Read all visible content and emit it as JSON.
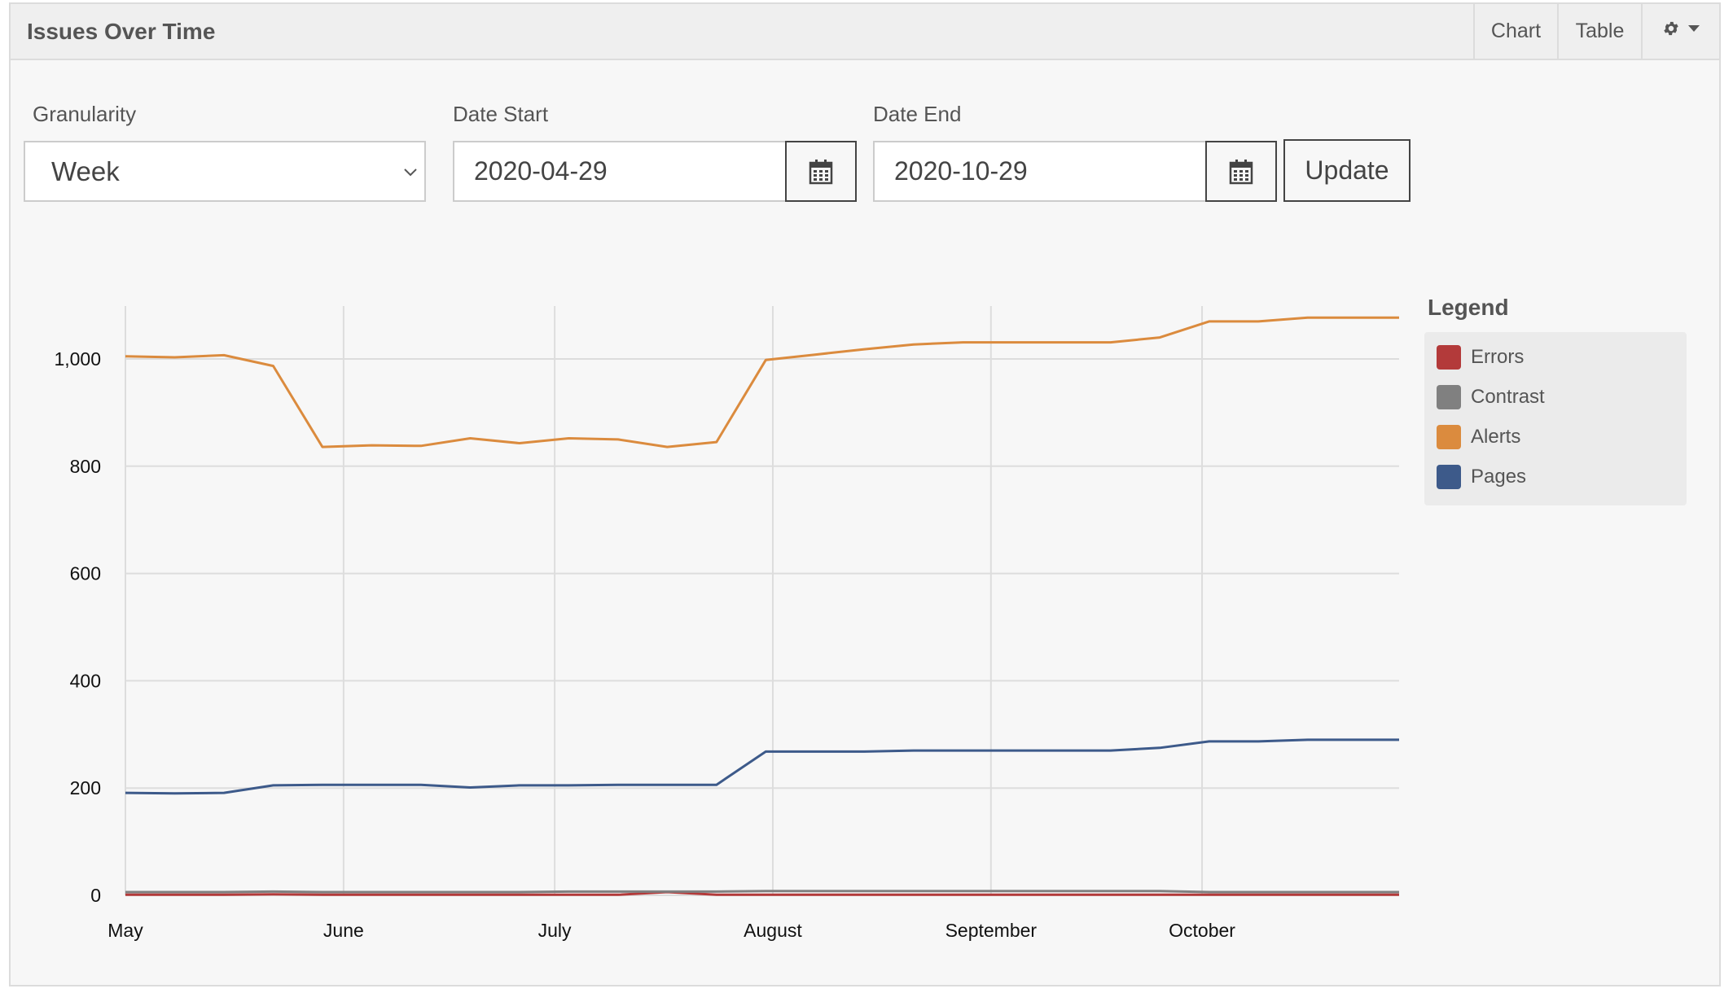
{
  "panel": {
    "title": "Issues Over Time",
    "tabs": [
      "Chart",
      "Table"
    ],
    "settings_icon": "gear-icon"
  },
  "filters": {
    "granularity": {
      "label": "Granularity",
      "value": "Week"
    },
    "date_start": {
      "label": "Date Start",
      "value": "2020-04-29",
      "icon": "calendar-icon"
    },
    "date_end": {
      "label": "Date End",
      "value": "2020-10-29",
      "icon": "calendar-icon"
    },
    "update_label": "Update"
  },
  "legend": {
    "title": "Legend"
  },
  "chart_data": {
    "type": "line",
    "title": "",
    "xlabel": "",
    "ylabel": "",
    "x": [
      "2020-05-01",
      "2020-05-08",
      "2020-05-15",
      "2020-05-22",
      "2020-05-29",
      "2020-06-05",
      "2020-06-12",
      "2020-06-19",
      "2020-06-26",
      "2020-07-03",
      "2020-07-10",
      "2020-07-17",
      "2020-07-24",
      "2020-07-31",
      "2020-08-07",
      "2020-08-14",
      "2020-08-21",
      "2020-08-28",
      "2020-09-04",
      "2020-09-11",
      "2020-09-18",
      "2020-09-25",
      "2020-10-02",
      "2020-10-09",
      "2020-10-16",
      "2020-10-23",
      "2020-10-29"
    ],
    "x_ticks": [
      {
        "date": "2020-05-01",
        "label": "May"
      },
      {
        "date": "2020-06-01",
        "label": "June"
      },
      {
        "date": "2020-07-01",
        "label": "July"
      },
      {
        "date": "2020-08-01",
        "label": "August"
      },
      {
        "date": "2020-09-01",
        "label": "September"
      },
      {
        "date": "2020-10-01",
        "label": "October"
      }
    ],
    "y_ticks": [
      0,
      200,
      400,
      600,
      800,
      1000
    ],
    "y_tick_labels": [
      "0",
      "200",
      "400",
      "600",
      "800",
      "1,000"
    ],
    "ylim": [
      0,
      1100
    ],
    "grid": true,
    "legend_position": "right",
    "series": [
      {
        "name": "Errors",
        "color": "#b33a3a",
        "values": [
          1,
          1,
          1,
          2,
          1,
          1,
          1,
          1,
          1,
          1,
          1,
          6,
          1,
          1,
          1,
          1,
          1,
          1,
          1,
          1,
          1,
          1,
          1,
          1,
          1,
          1,
          1
        ]
      },
      {
        "name": "Contrast",
        "color": "#808080",
        "values": [
          6,
          6,
          6,
          7,
          6,
          6,
          6,
          6,
          6,
          7,
          7,
          7,
          7,
          8,
          8,
          8,
          8,
          8,
          8,
          8,
          8,
          8,
          6,
          6,
          6,
          6,
          6
        ]
      },
      {
        "name": "Alerts",
        "color": "#db8b3e",
        "values": [
          1005,
          1003,
          1007,
          987,
          836,
          839,
          838,
          852,
          843,
          852,
          850,
          836,
          845,
          998,
          1008,
          1018,
          1027,
          1031,
          1031,
          1031,
          1031,
          1040,
          1070,
          1070,
          1077,
          1077,
          1077
        ]
      },
      {
        "name": "Pages",
        "color": "#3d5a8a",
        "values": [
          191,
          190,
          191,
          205,
          206,
          206,
          206,
          201,
          205,
          205,
          206,
          206,
          206,
          268,
          268,
          268,
          270,
          270,
          270,
          270,
          270,
          275,
          287,
          287,
          290,
          290,
          290
        ]
      }
    ]
  }
}
